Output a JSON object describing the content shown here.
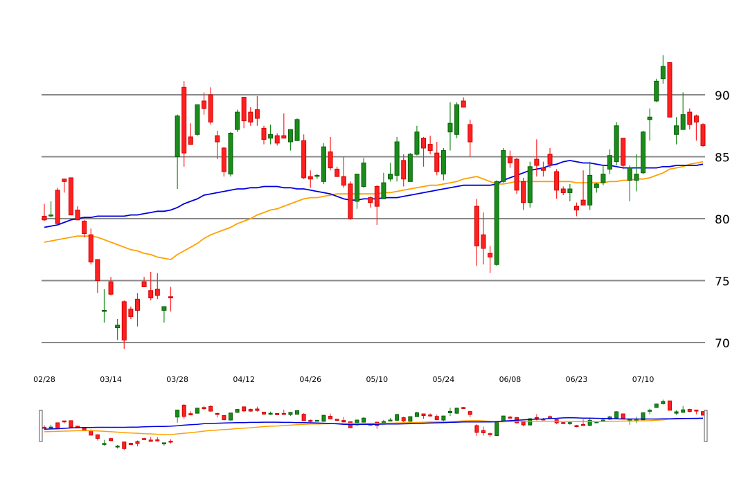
{
  "chart_data": {
    "type": "candlestick",
    "y_ticks": [
      70,
      75,
      80,
      85,
      90
    ],
    "ylim": [
      68.0,
      94.0
    ],
    "x_tick_labels": [
      "02/28",
      "03/14",
      "03/28",
      "04/12",
      "04/26",
      "05/10",
      "05/24",
      "06/08",
      "06/23",
      "07/10"
    ],
    "grid": "horizontal",
    "colors": {
      "up": "#1a8c1a",
      "down": "#ff2020",
      "ma_short": "#0000dd",
      "ma_long": "#ffa000",
      "grid": "#888888"
    },
    "candles": [
      [
        80.2,
        81.2,
        79.8,
        79.9
      ],
      [
        80.3,
        81.4,
        80.1,
        80.3
      ],
      [
        82.3,
        82.5,
        79.6,
        79.6
      ],
      [
        83.2,
        83.2,
        82.1,
        83.0
      ],
      [
        83.3,
        83.3,
        80.3,
        80.3
      ],
      [
        80.7,
        81.0,
        79.9,
        79.9
      ],
      [
        79.8,
        79.9,
        78.5,
        78.8
      ],
      [
        78.7,
        79.2,
        76.3,
        76.5
      ],
      [
        76.7,
        76.7,
        74.0,
        75.0
      ],
      [
        72.6,
        74.3,
        71.6,
        72.6
      ],
      [
        74.9,
        75.3,
        73.8,
        73.9
      ],
      [
        71.2,
        71.9,
        70.2,
        71.4
      ],
      [
        73.3,
        73.4,
        69.5,
        70.2
      ],
      [
        72.7,
        72.9,
        71.9,
        72.1
      ],
      [
        73.5,
        74.0,
        71.3,
        72.6
      ],
      [
        74.9,
        75.3,
        74.5,
        74.5
      ],
      [
        74.2,
        75.7,
        73.4,
        73.6
      ],
      [
        74.3,
        75.6,
        73.5,
        73.8
      ],
      [
        72.6,
        72.8,
        71.6,
        72.9
      ],
      [
        73.7,
        74.5,
        72.5,
        73.6
      ],
      [
        85.0,
        88.4,
        82.4,
        88.3
      ],
      [
        90.6,
        91.1,
        84.2,
        85.3
      ],
      [
        86.6,
        87.7,
        86.0,
        86.0
      ],
      [
        86.8,
        89.2,
        86.7,
        89.2
      ],
      [
        89.5,
        90.2,
        88.4,
        88.9
      ],
      [
        90.0,
        90.6,
        87.6,
        87.8
      ],
      [
        86.7,
        87.1,
        84.8,
        86.2
      ],
      [
        85.7,
        85.8,
        83.4,
        83.8
      ],
      [
        83.6,
        87.0,
        83.4,
        86.9
      ],
      [
        87.2,
        88.8,
        87.0,
        88.6
      ],
      [
        89.8,
        89.8,
        87.3,
        87.9
      ],
      [
        88.6,
        89.0,
        87.5,
        87.8
      ],
      [
        88.8,
        89.9,
        87.5,
        88.1
      ],
      [
        87.3,
        87.5,
        86.0,
        86.4
      ],
      [
        86.5,
        87.6,
        86.0,
        86.8
      ],
      [
        86.7,
        86.9,
        85.9,
        86.1
      ],
      [
        86.7,
        88.5,
        86.5,
        86.5
      ],
      [
        86.2,
        87.2,
        85.5,
        87.2
      ],
      [
        86.3,
        88.1,
        86.3,
        88.0
      ],
      [
        86.3,
        86.8,
        83.2,
        83.3
      ],
      [
        83.4,
        83.9,
        82.5,
        83.2
      ],
      [
        83.5,
        83.6,
        83.2,
        83.5
      ],
      [
        83.0,
        86.1,
        82.8,
        85.8
      ],
      [
        85.4,
        86.6,
        83.9,
        84.1
      ],
      [
        84.0,
        84.2,
        83.4,
        83.4
      ],
      [
        83.4,
        85.0,
        82.5,
        82.7
      ],
      [
        82.8,
        83.0,
        79.9,
        80.0
      ],
      [
        81.4,
        83.6,
        80.8,
        83.6
      ],
      [
        82.6,
        84.9,
        82.5,
        84.5
      ],
      [
        81.7,
        81.8,
        80.9,
        81.3
      ],
      [
        82.6,
        82.7,
        79.5,
        81.0
      ],
      [
        81.6,
        83.7,
        81.6,
        82.9
      ],
      [
        83.2,
        84.5,
        83.0,
        83.6
      ],
      [
        83.5,
        86.6,
        83.0,
        86.2
      ],
      [
        84.7,
        85.2,
        82.6,
        83.2
      ],
      [
        83.0,
        85.3,
        83.0,
        85.2
      ],
      [
        85.2,
        87.5,
        85.1,
        87.0
      ],
      [
        86.5,
        86.6,
        84.2,
        85.7
      ],
      [
        86.0,
        86.7,
        85.2,
        85.5
      ],
      [
        85.3,
        86.2,
        83.5,
        83.8
      ],
      [
        83.6,
        85.7,
        83.1,
        85.5
      ],
      [
        87.0,
        89.4,
        85.5,
        87.7
      ],
      [
        86.8,
        89.4,
        86.5,
        89.2
      ],
      [
        89.5,
        89.8,
        89.0,
        89.0
      ],
      [
        87.6,
        88.0,
        85.0,
        86.2
      ],
      [
        81.0,
        81.6,
        76.2,
        77.8
      ],
      [
        78.7,
        80.5,
        76.3,
        77.6
      ],
      [
        77.2,
        77.8,
        75.6,
        76.9
      ],
      [
        76.3,
        83.1,
        76.2,
        83.0
      ],
      [
        83.0,
        85.7,
        82.9,
        85.5
      ],
      [
        85.0,
        85.5,
        84.1,
        84.5
      ],
      [
        84.8,
        84.9,
        82.0,
        82.3
      ],
      [
        83.0,
        83.3,
        80.7,
        81.3
      ],
      [
        81.3,
        84.6,
        80.9,
        84.2
      ],
      [
        84.8,
        86.4,
        83.4,
        84.3
      ],
      [
        84.1,
        84.6,
        83.4,
        83.9
      ],
      [
        85.2,
        85.7,
        84.1,
        84.4
      ],
      [
        83.8,
        84.0,
        81.6,
        82.3
      ],
      [
        82.4,
        82.6,
        81.9,
        82.1
      ],
      [
        82.1,
        82.8,
        81.4,
        82.4
      ],
      [
        81.0,
        81.3,
        80.2,
        80.7
      ],
      [
        81.5,
        83.9,
        81.2,
        81.1
      ],
      [
        81.1,
        84.6,
        80.7,
        83.5
      ],
      [
        82.5,
        82.9,
        82.1,
        82.8
      ],
      [
        82.9,
        84.3,
        82.7,
        83.6
      ],
      [
        84.0,
        85.6,
        83.6,
        85.1
      ],
      [
        84.6,
        87.8,
        84.3,
        87.5
      ],
      [
        86.5,
        86.5,
        84.0,
        84.3
      ],
      [
        83.1,
        84.3,
        81.4,
        84.1
      ],
      [
        83.1,
        85.2,
        82.2,
        83.6
      ],
      [
        83.7,
        87.1,
        83.6,
        87.0
      ],
      [
        88.0,
        88.9,
        86.3,
        88.2
      ],
      [
        89.5,
        91.3,
        89.4,
        91.1
      ],
      [
        91.3,
        93.2,
        90.9,
        92.3
      ],
      [
        92.6,
        92.6,
        88.2,
        88.2
      ],
      [
        86.8,
        88.2,
        86.0,
        87.5
      ],
      [
        87.2,
        90.2,
        87.2,
        88.4
      ],
      [
        88.6,
        88.9,
        87.2,
        87.6
      ],
      [
        88.3,
        88.4,
        86.3,
        87.8
      ],
      [
        87.6,
        87.7,
        85.8,
        85.9
      ]
    ],
    "ma_short": [
      79.3,
      79.4,
      79.5,
      79.7,
      79.9,
      80.0,
      80.1,
      80.1,
      80.2,
      80.2,
      80.2,
      80.2,
      80.2,
      80.3,
      80.3,
      80.4,
      80.5,
      80.6,
      80.6,
      80.7,
      80.9,
      81.2,
      81.4,
      81.6,
      81.9,
      82.0,
      82.1,
      82.2,
      82.3,
      82.4,
      82.4,
      82.5,
      82.5,
      82.6,
      82.6,
      82.6,
      82.5,
      82.5,
      82.4,
      82.4,
      82.3,
      82.2,
      82.1,
      82.0,
      81.8,
      81.6,
      81.5,
      81.5,
      81.6,
      81.6,
      81.6,
      81.7,
      81.7,
      81.7,
      81.8,
      81.9,
      82.0,
      82.1,
      82.2,
      82.3,
      82.4,
      82.5,
      82.6,
      82.7,
      82.7,
      82.7,
      82.7,
      82.7,
      82.8,
      83.1,
      83.3,
      83.5,
      83.7,
      83.9,
      84.0,
      84.1,
      84.3,
      84.4,
      84.6,
      84.7,
      84.6,
      84.5,
      84.5,
      84.4,
      84.3,
      84.3,
      84.2,
      84.1,
      84.1,
      84.1,
      84.1,
      84.1,
      84.1,
      84.2,
      84.2,
      84.3,
      84.3,
      84.3,
      84.3,
      84.4
    ],
    "ma_long": [
      78.1,
      78.2,
      78.3,
      78.4,
      78.5,
      78.6,
      78.6,
      78.6,
      78.5,
      78.3,
      78.1,
      77.9,
      77.7,
      77.5,
      77.4,
      77.2,
      77.1,
      76.9,
      76.8,
      76.7,
      77.1,
      77.4,
      77.7,
      78.0,
      78.4,
      78.7,
      78.9,
      79.1,
      79.3,
      79.6,
      79.8,
      80.0,
      80.3,
      80.5,
      80.7,
      80.8,
      81.0,
      81.2,
      81.4,
      81.6,
      81.7,
      81.7,
      81.8,
      81.9,
      82.0,
      82.0,
      82.0,
      82.0,
      82.0,
      82.0,
      82.0,
      82.1,
      82.1,
      82.2,
      82.3,
      82.4,
      82.5,
      82.6,
      82.7,
      82.7,
      82.8,
      82.9,
      83.0,
      83.2,
      83.3,
      83.4,
      83.2,
      83.0,
      82.8,
      82.8,
      82.9,
      83.0,
      83.0,
      83.0,
      83.0,
      83.0,
      83.0,
      83.0,
      83.0,
      83.0,
      82.9,
      82.9,
      82.9,
      82.9,
      82.9,
      83.0,
      83.0,
      83.1,
      83.1,
      83.2,
      83.2,
      83.3,
      83.5,
      83.7,
      84.0,
      84.1,
      84.2,
      84.4,
      84.5,
      84.6
    ]
  }
}
